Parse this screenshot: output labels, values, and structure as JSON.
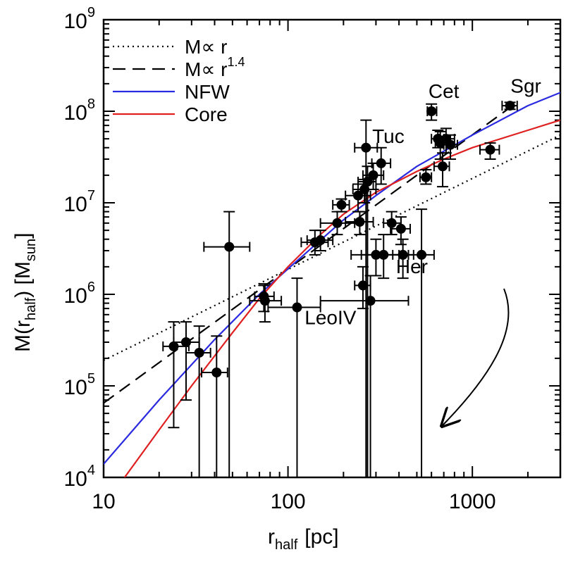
{
  "chart_data": {
    "type": "scatter",
    "title": "",
    "xlabel": {
      "main": "r",
      "sub": "half",
      "unit": "[pc]"
    },
    "ylabel": {
      "main": "M(r",
      "sub": "half",
      "mid": ")  [M",
      "sub2": "sun",
      "end": "]"
    },
    "xscale": "log",
    "yscale": "log",
    "xlim": [
      10,
      3000
    ],
    "ylim": [
      10000,
      1000000000
    ],
    "x_tick_labels": [
      {
        "value": 10,
        "label": "10"
      },
      {
        "value": 100,
        "label": "100"
      },
      {
        "value": 1000,
        "label": "1000"
      }
    ],
    "y_tick_labels": [
      {
        "value": 10000,
        "base": "10",
        "exp": "4"
      },
      {
        "value": 100000,
        "base": "10",
        "exp": "5"
      },
      {
        "value": 1000000,
        "base": "10",
        "exp": "6"
      },
      {
        "value": 10000000,
        "base": "10",
        "exp": "7"
      },
      {
        "value": 100000000,
        "base": "10",
        "exp": "8"
      },
      {
        "value": 1000000000,
        "base": "10",
        "exp": "9"
      }
    ],
    "legend": {
      "position": "top-left",
      "entries": [
        {
          "text": "M∝ r",
          "exp": "",
          "style": "dotted",
          "color": "#000000"
        },
        {
          "text": "M∝ r",
          "exp": "1.4",
          "style": "dashed",
          "color": "#000000"
        },
        {
          "text": "NFW",
          "exp": "",
          "style": "solid",
          "color": "#2a2ae0"
        },
        {
          "text": "Core",
          "exp": "",
          "style": "solid",
          "color": "#e02020"
        }
      ]
    },
    "annotations": [
      {
        "text": "Cet",
        "x": 700,
        "y": 140000000
      },
      {
        "text": "Sgr",
        "x": 1950,
        "y": 160000000
      },
      {
        "text": "Tuc",
        "x": 350,
        "y": 45000000
      },
      {
        "text": "Her",
        "x": 470,
        "y": 1700000
      },
      {
        "text": "LeoIV",
        "x": 170,
        "y": 470000
      }
    ],
    "series": [
      {
        "name": "M∝ r",
        "kind": "line",
        "style": "dotted",
        "color": "#000000",
        "x": [
          10,
          3000
        ],
        "y": [
          190000,
          55000000
        ]
      },
      {
        "name": "M∝ r^1.4",
        "kind": "line",
        "style": "dashed",
        "color": "#000000",
        "x": [
          10,
          1700
        ],
        "y": [
          65000,
          120000000
        ]
      },
      {
        "name": "NFW",
        "kind": "line",
        "style": "solid",
        "color": "#2a2ae0",
        "x": [
          10,
          20,
          40,
          70,
          100,
          200,
          300,
          500,
          1000,
          2000,
          3000
        ],
        "y": [
          14000,
          70000,
          320000,
          1000000,
          1900000,
          6500000,
          12000000,
          25000000,
          55000000,
          115000000,
          160000000
        ]
      },
      {
        "name": "Core",
        "kind": "line",
        "style": "solid",
        "color": "#e02020",
        "x": [
          13,
          20,
          30,
          50,
          70,
          100,
          150,
          200,
          300,
          500,
          700,
          1000,
          2000,
          3000
        ],
        "y": [
          10000,
          33000,
          100000,
          380000,
          900000,
          2000000,
          4500000,
          7500000,
          13000000,
          22000000,
          30000000,
          40000000,
          62000000,
          80000000
        ]
      },
      {
        "name": "galaxies",
        "kind": "points",
        "color": "#000000",
        "points": [
          {
            "x": 24,
            "y": 270000,
            "xerr": [
              21,
              29
            ],
            "yerr": [
              35000,
              500000
            ]
          },
          {
            "x": 28,
            "y": 300000,
            "xerr": [
              24,
              33
            ],
            "yerr": [
              70000,
              500000
            ]
          },
          {
            "x": 33,
            "y": 230000,
            "xerr": [
              28,
              38
            ],
            "yerr": [
              10000,
              450000
            ]
          },
          {
            "x": 41,
            "y": 140000,
            "xerr": [
              34,
              47
            ],
            "yerr": [
              10000,
              350000
            ]
          },
          {
            "x": 48,
            "y": 3300000,
            "xerr": [
              35,
              62
            ],
            "yerr": [
              10000,
              8000000
            ]
          },
          {
            "x": 74,
            "y": 950000,
            "xerr": [
              66,
              84
            ],
            "yerr": [
              650000,
              1250000
            ]
          },
          {
            "x": 75,
            "y": 850000,
            "xerr": [
              62,
              92
            ],
            "yerr": [
              500000,
              1300000
            ]
          },
          {
            "x": 112,
            "y": 720000,
            "xerr": [
              78,
              150
            ],
            "yerr": [
              10000,
              1500000
            ]
          },
          {
            "x": 140,
            "y": 3700000,
            "xerr": [
              118,
              165
            ],
            "yerr": [
              2700000,
              5000000
            ]
          },
          {
            "x": 150,
            "y": 3900000,
            "xerr": [
              127,
              175
            ],
            "yerr": [
              3000000,
              5000000
            ]
          },
          {
            "x": 185,
            "y": 6000000,
            "xerr": [
              150,
              230
            ],
            "yerr": [
              4500000,
              8000000
            ]
          },
          {
            "x": 195,
            "y": 9500000,
            "xerr": [
              175,
              215
            ],
            "yerr": [
              8000000,
              11000000
            ]
          },
          {
            "x": 240,
            "y": 12000000,
            "xerr": [
              205,
              280
            ],
            "yerr": [
              8000000,
              16000000
            ]
          },
          {
            "x": 245,
            "y": 6200000,
            "xerr": [
              205,
              290
            ],
            "yerr": [
              4500000,
              8000000
            ]
          },
          {
            "x": 255,
            "y": 1250000,
            "xerr": [
              230,
              280
            ],
            "yerr": [
              700000,
              2000000
            ]
          },
          {
            "x": 260,
            "y": 14000000,
            "xerr": [
              225,
              300
            ],
            "yerr": [
              10000000,
              18000000
            ]
          },
          {
            "x": 265,
            "y": 40000000,
            "xerr": [
              230,
              305
            ],
            "yerr": [
              10000,
              80000000
            ]
          },
          {
            "x": 270,
            "y": 17000000,
            "xerr": [
              240,
              300
            ],
            "yerr": [
              10000,
              25000000
            ]
          },
          {
            "x": 280,
            "y": 850000,
            "xerr": [
              150,
              450
            ],
            "yerr": [
              10000,
              1600000
            ]
          },
          {
            "x": 290,
            "y": 20000000,
            "xerr": [
              255,
              330
            ],
            "yerr": [
              14000000,
              27000000
            ]
          },
          {
            "x": 300,
            "y": 2700000,
            "xerr": [
              220,
              400
            ],
            "yerr": [
              1600000,
              4000000
            ]
          },
          {
            "x": 320,
            "y": 27000000,
            "xerr": [
              285,
              360
            ],
            "yerr": [
              16000000,
              40000000
            ]
          },
          {
            "x": 330,
            "y": 2700000,
            "xerr": [
              250,
              420
            ],
            "yerr": [
              1500000,
              4500000
            ]
          },
          {
            "x": 365,
            "y": 6000000,
            "xerr": [
              330,
              410
            ],
            "yerr": [
              4500000,
              8000000
            ]
          },
          {
            "x": 410,
            "y": 5200000,
            "xerr": [
              360,
              460
            ],
            "yerr": [
              3500000,
              7000000
            ]
          },
          {
            "x": 420,
            "y": 2700000,
            "xerr": [
              370,
              480
            ],
            "yerr": [
              1500000,
              4000000
            ]
          },
          {
            "x": 530,
            "y": 2700000,
            "xerr": [
              450,
              620
            ],
            "yerr": [
              10000,
              8500000
            ]
          },
          {
            "x": 560,
            "y": 19000000,
            "xerr": [
              520,
              600
            ],
            "yerr": [
              16000000,
              23000000
            ]
          },
          {
            "x": 600,
            "y": 100000000,
            "xerr": [
              570,
              640
            ],
            "yerr": [
              80000000,
              120000000
            ]
          },
          {
            "x": 650,
            "y": 50000000,
            "xerr": [
              600,
              700
            ],
            "yerr": [
              40000000,
              62000000
            ]
          },
          {
            "x": 670,
            "y": 45000000,
            "xerr": [
              630,
              720
            ],
            "yerr": [
              30000000,
              60000000
            ]
          },
          {
            "x": 690,
            "y": 25000000,
            "xerr": [
              620,
              750
            ],
            "yerr": [
              15000000,
              35000000
            ]
          },
          {
            "x": 720,
            "y": 50000000,
            "xerr": [
              660,
              800
            ],
            "yerr": [
              35000000,
              65000000
            ]
          },
          {
            "x": 760,
            "y": 43000000,
            "xerr": [
              700,
              830
            ],
            "yerr": [
              30000000,
              55000000
            ]
          },
          {
            "x": 1250,
            "y": 38000000,
            "xerr": [
              1100,
              1400
            ],
            "yerr": [
              30000000,
              45000000
            ]
          },
          {
            "x": 1600,
            "y": 115000000,
            "xerr": [
              1450,
              1750
            ],
            "yerr": [
              105000000,
              125000000
            ]
          }
        ]
      }
    ]
  }
}
